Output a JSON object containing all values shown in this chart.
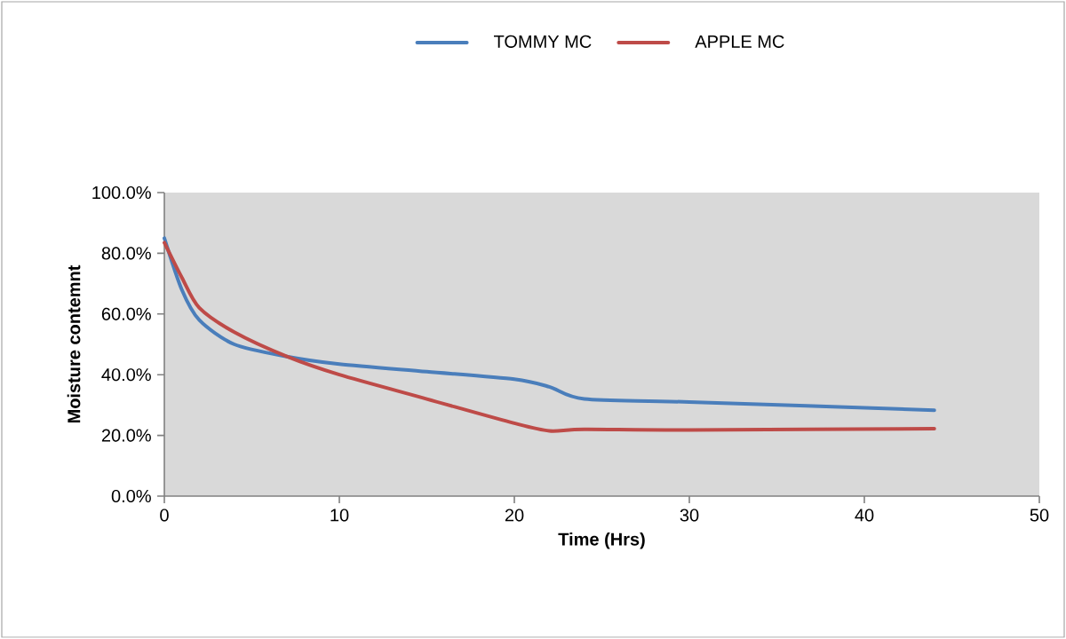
{
  "chart_data": {
    "type": "line",
    "xlabel": "Time (Hrs)",
    "ylabel": "Moisture contemnt",
    "legend": "top",
    "x": [
      0,
      1,
      2,
      4,
      7,
      10,
      15,
      20,
      22,
      24,
      30,
      44
    ],
    "series": [
      {
        "name": "TOMMY MC",
        "color": "#4a7ebb",
        "values": [
          85,
          68,
          58,
          50,
          46,
          43.5,
          41,
          38.5,
          36,
          32,
          31,
          28.3
        ]
      },
      {
        "name": "APPLE MC",
        "color": "#be4b48",
        "values": [
          83.5,
          72,
          62,
          54,
          46,
          40,
          32,
          24,
          21.5,
          22,
          21.8,
          22.2
        ]
      }
    ],
    "xlim": [
      0,
      50
    ],
    "ylim": [
      0,
      100
    ],
    "xticks": [
      0,
      10,
      20,
      30,
      40,
      50
    ],
    "yticks": [
      {
        "value": 0,
        "label": "0.0%"
      },
      {
        "value": 20,
        "label": "20.0%"
      },
      {
        "value": 40,
        "label": "40.0%"
      },
      {
        "value": 60,
        "label": "60.0%"
      },
      {
        "value": 80,
        "label": "80.0%"
      },
      {
        "value": 100,
        "label": "100.0%"
      }
    ]
  }
}
